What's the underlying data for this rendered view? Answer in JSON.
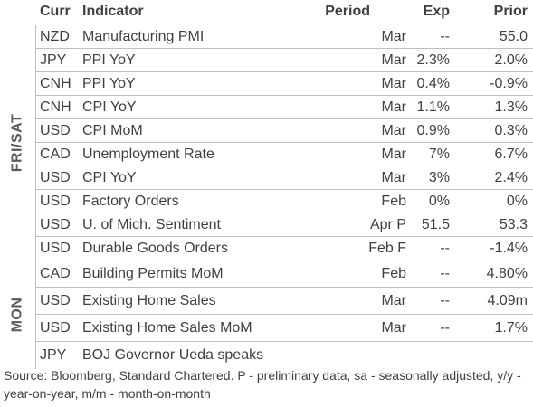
{
  "header": {
    "curr": "Curr",
    "indicator": "Indicator",
    "period": "Period",
    "exp": "Exp",
    "prior": "Prior"
  },
  "sections": [
    {
      "day": "FRI/SAT",
      "rows": [
        {
          "curr": "NZD",
          "indicator": "Manufacturing PMI",
          "period": "Mar",
          "exp": "--",
          "prior": "55.0"
        },
        {
          "curr": "JPY",
          "indicator": "PPI YoY",
          "period": "Mar",
          "exp": "2.3%",
          "prior": "2.0%"
        },
        {
          "curr": "CNH",
          "indicator": "PPI YoY",
          "period": "Mar",
          "exp": "0.4%",
          "prior": "-0.9%"
        },
        {
          "curr": "CNH",
          "indicator": "CPI YoY",
          "period": "Mar",
          "exp": "1.1%",
          "prior": "1.3%"
        },
        {
          "curr": "USD",
          "indicator": "CPI MoM",
          "period": "Mar",
          "exp": "0.9%",
          "prior": "0.3%"
        },
        {
          "curr": "CAD",
          "indicator": "Unemployment Rate",
          "period": "Mar",
          "exp": "7%",
          "prior": "6.7%"
        },
        {
          "curr": "USD",
          "indicator": "CPI YoY",
          "period": "Mar",
          "exp": "3%",
          "prior": "2.4%"
        },
        {
          "curr": "USD",
          "indicator": "Factory Orders",
          "period": "Feb",
          "exp": "0%",
          "prior": "0%"
        },
        {
          "curr": "USD",
          "indicator": "U. of Mich. Sentiment",
          "period": "Apr P",
          "exp": "51.5",
          "prior": "53.3"
        },
        {
          "curr": "USD",
          "indicator": "Durable Goods Orders",
          "period": "Feb F",
          "exp": "--",
          "prior": "-1.4%"
        }
      ]
    },
    {
      "day": "MON",
      "rows": [
        {
          "curr": "CAD",
          "indicator": "Building Permits MoM",
          "period": "Feb",
          "exp": "--",
          "prior": "4.80%"
        },
        {
          "curr": "USD",
          "indicator": "Existing Home Sales",
          "period": "Mar",
          "exp": "--",
          "prior": "4.09m"
        },
        {
          "curr": "USD",
          "indicator": "Existing Home Sales MoM",
          "period": "Mar",
          "exp": "--",
          "prior": "1.7%"
        },
        {
          "curr": "JPY",
          "indicator": "BOJ Governor Ueda speaks",
          "period": "",
          "exp": "",
          "prior": ""
        }
      ]
    }
  ],
  "source": "Source: Bloomberg, Standard Chartered. P - preliminary data, sa - seasonally adjusted, y/y - year-on-year, m/m - month-on-month"
}
